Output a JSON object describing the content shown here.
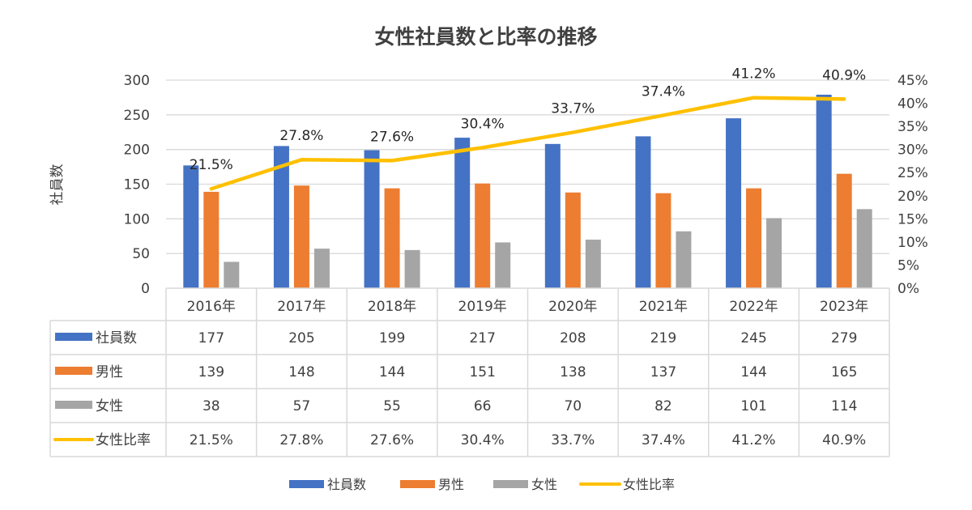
{
  "chart_data": {
    "type": "bar",
    "title": "女性社員数と比率の推移",
    "ylabel": "社員数",
    "ylim": [
      0,
      300
    ],
    "yticks": [
      "0",
      "50",
      "100",
      "150",
      "200",
      "250",
      "300"
    ],
    "y2lim": [
      0,
      45
    ],
    "y2ticks": [
      "0%",
      "5%",
      "10%",
      "15%",
      "20%",
      "25%",
      "30%",
      "35%",
      "40%",
      "45%"
    ],
    "grid": true,
    "legend_position": "bottom",
    "categories": [
      "2016年",
      "2017年",
      "2018年",
      "2019年",
      "2020年",
      "2021年",
      "2022年",
      "2023年"
    ],
    "series": [
      {
        "name": "社員数",
        "type": "bar",
        "axis": "left",
        "color": "#4472C4",
        "values": [
          177,
          205,
          199,
          217,
          208,
          219,
          245,
          279
        ],
        "labels": [
          "177",
          "205",
          "199",
          "217",
          "208",
          "219",
          "245",
          "279"
        ]
      },
      {
        "name": "男性",
        "type": "bar",
        "axis": "left",
        "color": "#ED7D31",
        "values": [
          139,
          148,
          144,
          151,
          138,
          137,
          144,
          165
        ],
        "labels": [
          "139",
          "148",
          "144",
          "151",
          "138",
          "137",
          "144",
          "165"
        ]
      },
      {
        "name": "女性",
        "type": "bar",
        "axis": "left",
        "color": "#A5A5A5",
        "values": [
          38,
          57,
          55,
          66,
          70,
          82,
          101,
          114
        ],
        "labels": [
          "38",
          "57",
          "55",
          "66",
          "70",
          "82",
          "101",
          "114"
        ]
      },
      {
        "name": "女性比率",
        "type": "line",
        "axis": "right",
        "color": "#FFC000",
        "values": [
          21.5,
          27.8,
          27.6,
          30.4,
          33.7,
          37.4,
          41.2,
          40.9
        ],
        "labels": [
          "21.5%",
          "27.8%",
          "27.6%",
          "30.4%",
          "33.7%",
          "37.4%",
          "41.2%",
          "40.9%"
        ]
      }
    ],
    "data_table": true
  }
}
